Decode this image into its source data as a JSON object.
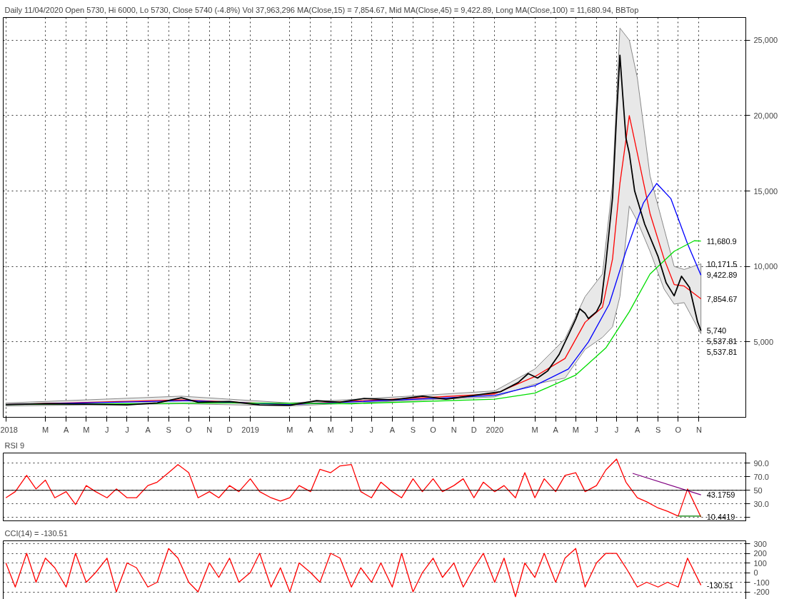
{
  "chart_data": [
    {
      "type": "line",
      "title": "Daily 11/04/2020 Open 5730, Hi 6000, Lo 5730, Close 5740 (-4.8%) Vol 37,963,296 MA(Close,15) = 7,854.67, Mid MA(Close,45) = 9,422.89, Long MA(Close,100) = 11,680.94, BBTop",
      "xlim": [
        "2017-12-28",
        "2021-01-10"
      ],
      "ylim": [
        0,
        26500
      ],
      "xticks": [
        {
          "value": "2018-01-01",
          "label": "2018"
        },
        {
          "value": "2018-03-01",
          "label": "M"
        },
        {
          "value": "2018-04-01",
          "label": "A"
        },
        {
          "value": "2018-05-01",
          "label": "M"
        },
        {
          "value": "2018-06-01",
          "label": "J"
        },
        {
          "value": "2018-07-01",
          "label": "J"
        },
        {
          "value": "2018-08-01",
          "label": "A"
        },
        {
          "value": "2018-09-01",
          "label": "S"
        },
        {
          "value": "2018-10-01",
          "label": "O"
        },
        {
          "value": "2018-11-01",
          "label": "N"
        },
        {
          "value": "2018-12-01",
          "label": "D"
        },
        {
          "value": "2019-01-01",
          "label": "2019"
        },
        {
          "value": "2019-03-01",
          "label": "M"
        },
        {
          "value": "2019-04-01",
          "label": "A"
        },
        {
          "value": "2019-05-01",
          "label": "M"
        },
        {
          "value": "2019-06-01",
          "label": "J"
        },
        {
          "value": "2019-07-01",
          "label": "J"
        },
        {
          "value": "2019-08-01",
          "label": "A"
        },
        {
          "value": "2019-09-01",
          "label": "S"
        },
        {
          "value": "2019-10-01",
          "label": "O"
        },
        {
          "value": "2019-11-01",
          "label": "N"
        },
        {
          "value": "2019-12-01",
          "label": "D"
        },
        {
          "value": "2020-01-01",
          "label": "2020"
        },
        {
          "value": "2020-03-01",
          "label": "M"
        },
        {
          "value": "2020-04-01",
          "label": "A"
        },
        {
          "value": "2020-05-01",
          "label": "M"
        },
        {
          "value": "2020-06-01",
          "label": "J"
        },
        {
          "value": "2020-07-01",
          "label": "J"
        },
        {
          "value": "2020-08-01",
          "label": "A"
        },
        {
          "value": "2020-09-01",
          "label": "S"
        },
        {
          "value": "2020-10-01",
          "label": "O"
        },
        {
          "value": "2020-11-01",
          "label": "N"
        }
      ],
      "yticks": [
        {
          "value": 5000,
          "label": "5,000"
        },
        {
          "value": 10000,
          "label": "10,000"
        },
        {
          "value": 15000,
          "label": "15,000"
        },
        {
          "value": 20000,
          "label": "20,000"
        },
        {
          "value": 25000,
          "label": "25,000"
        }
      ],
      "grid": true,
      "line_style": "solid",
      "marker": "none",
      "series": [
        {
          "color": "#ff0000",
          "x": [
            "2018-01-01",
            "2018-09-20",
            "2019-03-01",
            "2019-09-15",
            "2020-01-01",
            "2020-03-01",
            "2020-04-15",
            "2020-05-15",
            "2020-06-10",
            "2020-06-25",
            "2020-07-06",
            "2020-07-20",
            "2020-08-01",
            "2020-08-20",
            "2020-09-10",
            "2020-09-25",
            "2020-10-10",
            "2020-11-04"
          ],
          "values": [
            850,
            1150,
            850,
            1300,
            1550,
            2700,
            3900,
            6300,
            7300,
            10500,
            15500,
            20000,
            17500,
            13500,
            10500,
            8800,
            8700,
            7854.67
          ],
          "lower": [
            750,
            900,
            750,
            1150,
            1350,
            2200,
            2600,
            4500,
            5300,
            6000,
            8000,
            14000,
            13000,
            11000,
            8500,
            7500,
            7600,
            5537.81
          ],
          "upper": [
            950,
            1400,
            950,
            1450,
            1750,
            3200,
            5200,
            8000,
            9500,
            15500,
            25800,
            25000,
            22500,
            16000,
            12500,
            10000,
            9800,
            10171.5
          ]
        },
        {
          "color": "#0000ff",
          "x": [
            "2018-01-01",
            "2018-10-01",
            "2019-03-01",
            "2019-10-01",
            "2020-01-01",
            "2020-03-01",
            "2020-04-20",
            "2020-05-20",
            "2020-06-20",
            "2020-07-15",
            "2020-08-10",
            "2020-08-30",
            "2020-09-20",
            "2020-10-15",
            "2020-11-04"
          ],
          "values": [
            850,
            1100,
            850,
            1250,
            1450,
            2100,
            3200,
            5000,
            7500,
            11000,
            14200,
            15500,
            14500,
            11500,
            9422.89
          ]
        },
        {
          "color": "#00dd00",
          "x": [
            "2018-01-01",
            "2018-12-01",
            "2019-06-01",
            "2020-01-01",
            "2020-03-01",
            "2020-05-01",
            "2020-06-15",
            "2020-07-20",
            "2020-08-20",
            "2020-09-25",
            "2020-10-25",
            "2020-11-04"
          ],
          "values": [
            850,
            950,
            900,
            1200,
            1600,
            2800,
            4600,
            7000,
            9500,
            11000,
            11700,
            11680.94
          ]
        },
        {
          "color": "#000000",
          "x": [
            "2018-01-01",
            "2018-03-01",
            "2018-05-01",
            "2018-07-01",
            "2018-08-15",
            "2018-09-20",
            "2018-10-15",
            "2018-12-01",
            "2019-01-15",
            "2019-03-01",
            "2019-04-10",
            "2019-05-15",
            "2019-06-20",
            "2019-08-01",
            "2019-09-15",
            "2019-10-20",
            "2019-12-01",
            "2020-01-10",
            "2020-02-05",
            "2020-02-20",
            "2020-03-05",
            "2020-03-20",
            "2020-04-06",
            "2020-04-20",
            "2020-05-01",
            "2020-05-07",
            "2020-05-15",
            "2020-05-20",
            "2020-06-01",
            "2020-06-08",
            "2020-06-15",
            "2020-06-25",
            "2020-07-01",
            "2020-07-06",
            "2020-07-10",
            "2020-07-15",
            "2020-07-20",
            "2020-07-28",
            "2020-08-12",
            "2020-09-01",
            "2020-09-13",
            "2020-09-25",
            "2020-10-06",
            "2020-10-18",
            "2020-10-30",
            "2020-11-04"
          ],
          "values": [
            850,
            900,
            870,
            820,
            950,
            1300,
            1000,
            1050,
            820,
            800,
            1100,
            1000,
            1250,
            1150,
            1400,
            1200,
            1450,
            1700,
            2300,
            2900,
            2600,
            3070,
            4150,
            5450,
            6500,
            7190,
            6900,
            6540,
            7000,
            7600,
            10200,
            14550,
            20000,
            24000,
            21470,
            18500,
            17500,
            15000,
            12800,
            10650,
            8920,
            8050,
            9350,
            8600,
            6320,
            5740
          ]
        }
      ],
      "annotations": [
        {
          "text": "11,680.9",
          "x": "2020-11-04",
          "y": 11680.9
        },
        {
          "text": "10,171.5",
          "x": "2020-11-04",
          "y": 10171.5
        },
        {
          "text": "9,422.89",
          "x": "2020-11-04",
          "y": 9422.89
        },
        {
          "text": "7,854.67",
          "x": "2020-11-04",
          "y": 7854.67
        },
        {
          "text": "5,740",
          "x": "2020-11-04",
          "y": 5740
        },
        {
          "text": "5,537.81",
          "x": "2020-11-04",
          "y": 5537.81
        },
        {
          "text": "5,537.81",
          "x": "2020-11-04",
          "y": 5537.81
        }
      ]
    },
    {
      "type": "line",
      "title": "RSI 9",
      "xlim": [
        "2017-12-28",
        "2021-01-10"
      ],
      "ylim": [
        5,
        105
      ],
      "tick_labels": "y",
      "grid": true,
      "line_style": "solid",
      "marker": "none",
      "yticks": [
        {
          "value": 10,
          "label": null
        },
        {
          "value": 30,
          "label": "30.0"
        },
        {
          "value": 50,
          "label": "50"
        },
        {
          "value": 70,
          "label": "70.0"
        },
        {
          "value": 90,
          "label": "90.0"
        }
      ],
      "ref_lines": [
        {
          "axis": "y",
          "value": 50,
          "color": "#000000"
        }
      ],
      "series": [
        {
          "color": "#ff0000",
          "x": [
            "2018-01-01",
            "2018-01-15",
            "2018-02-01",
            "2018-02-15",
            "2018-03-01",
            "2018-03-15",
            "2018-04-01",
            "2018-04-15",
            "2018-05-01",
            "2018-05-15",
            "2018-06-01",
            "2018-06-15",
            "2018-07-01",
            "2018-07-15",
            "2018-08-01",
            "2018-08-15",
            "2018-09-01",
            "2018-09-15",
            "2018-10-01",
            "2018-10-15",
            "2018-11-01",
            "2018-11-15",
            "2018-12-01",
            "2018-12-15",
            "2019-01-01",
            "2019-01-15",
            "2019-02-01",
            "2019-02-15",
            "2019-03-01",
            "2019-03-15",
            "2019-04-01",
            "2019-04-15",
            "2019-05-01",
            "2019-05-15",
            "2019-06-01",
            "2019-06-15",
            "2019-07-01",
            "2019-07-15",
            "2019-08-01",
            "2019-08-15",
            "2019-09-01",
            "2019-09-15",
            "2019-10-01",
            "2019-10-15",
            "2019-11-01",
            "2019-11-15",
            "2019-12-01",
            "2019-12-15",
            "2020-01-01",
            "2020-01-15",
            "2020-02-01",
            "2020-02-15",
            "2020-03-01",
            "2020-03-15",
            "2020-04-01",
            "2020-04-15",
            "2020-05-01",
            "2020-05-15",
            "2020-06-01",
            "2020-06-15",
            "2020-07-01",
            "2020-07-15",
            "2020-08-01",
            "2020-08-15",
            "2020-09-01",
            "2020-09-15",
            "2020-10-01",
            "2020-10-15",
            "2020-11-04"
          ],
          "values": [
            39,
            48,
            72,
            52,
            65,
            39,
            48,
            29,
            57,
            48,
            39,
            52,
            39,
            39,
            57,
            62,
            76,
            88,
            76,
            39,
            48,
            39,
            57,
            48,
            67,
            48,
            39,
            34,
            39,
            57,
            48,
            81,
            76,
            86,
            88,
            48,
            39,
            62,
            48,
            39,
            67,
            48,
            67,
            48,
            57,
            67,
            39,
            62,
            48,
            57,
            39,
            76,
            39,
            67,
            48,
            72,
            76,
            48,
            57,
            80,
            96,
            62,
            39,
            33,
            24,
            19,
            12,
            52,
            10.4419
          ]
        },
        {
          "color": "#800080",
          "x": [
            "2020-07-25",
            "2020-11-04"
          ],
          "values": [
            75,
            43.1759
          ]
        },
        {
          "color": "#008000",
          "x": [
            "2020-10-01",
            "2020-11-04"
          ],
          "values": [
            12,
            12
          ]
        }
      ],
      "annotations": [
        {
          "text": "43.1759",
          "x": "2020-11-04",
          "y": 43.1759
        },
        {
          "text": "10.4419",
          "x": "2020-11-04",
          "y": 10.4419
        }
      ]
    },
    {
      "type": "line",
      "title": "CCI(14) = -130.51",
      "xlim": [
        "2017-12-28",
        "2021-01-10"
      ],
      "ylim": [
        -300,
        330
      ],
      "tick_labels": "y",
      "grid": true,
      "line_style": "solid",
      "marker": "none",
      "yticks": [
        -200,
        -100,
        0,
        100,
        200,
        300
      ],
      "series": [
        {
          "color": "#ff0000",
          "x": [
            "2018-01-01",
            "2018-01-15",
            "2018-02-01",
            "2018-02-15",
            "2018-03-01",
            "2018-03-15",
            "2018-04-01",
            "2018-04-15",
            "2018-05-01",
            "2018-05-15",
            "2018-06-01",
            "2018-06-15",
            "2018-07-01",
            "2018-07-15",
            "2018-08-01",
            "2018-08-15",
            "2018-09-01",
            "2018-09-15",
            "2018-10-01",
            "2018-10-15",
            "2018-11-01",
            "2018-11-15",
            "2018-12-01",
            "2018-12-15",
            "2019-01-01",
            "2019-01-15",
            "2019-02-01",
            "2019-02-15",
            "2019-03-01",
            "2019-03-15",
            "2019-04-01",
            "2019-04-15",
            "2019-05-01",
            "2019-05-15",
            "2019-06-01",
            "2019-06-15",
            "2019-07-01",
            "2019-07-15",
            "2019-08-01",
            "2019-08-15",
            "2019-09-01",
            "2019-09-15",
            "2019-10-01",
            "2019-10-15",
            "2019-11-01",
            "2019-11-15",
            "2019-12-01",
            "2019-12-15",
            "2020-01-01",
            "2020-01-15",
            "2020-02-01",
            "2020-02-15",
            "2020-03-01",
            "2020-03-15",
            "2020-04-01",
            "2020-04-15",
            "2020-05-01",
            "2020-05-15",
            "2020-06-01",
            "2020-06-15",
            "2020-07-01",
            "2020-07-15",
            "2020-08-01",
            "2020-08-15",
            "2020-09-01",
            "2020-09-15",
            "2020-10-01",
            "2020-10-15",
            "2020-11-04"
          ],
          "values": [
            100,
            -150,
            200,
            -100,
            150,
            50,
            -150,
            200,
            -100,
            0,
            150,
            -200,
            100,
            50,
            -150,
            -100,
            250,
            150,
            -100,
            -200,
            100,
            -50,
            150,
            -100,
            0,
            200,
            -150,
            50,
            -200,
            100,
            0,
            -100,
            200,
            150,
            -150,
            50,
            -100,
            100,
            -150,
            200,
            -200,
            0,
            150,
            -50,
            100,
            -150,
            50,
            200,
            -100,
            150,
            -250,
            100,
            -50,
            200,
            -100,
            150,
            250,
            -150,
            100,
            200,
            200,
            50,
            -150,
            -100,
            -150,
            -100,
            -150,
            150,
            -130.51
          ]
        }
      ],
      "annotations": [
        {
          "text": "-130.51",
          "x": "2020-11-04",
          "y": -130.51
        }
      ]
    }
  ]
}
